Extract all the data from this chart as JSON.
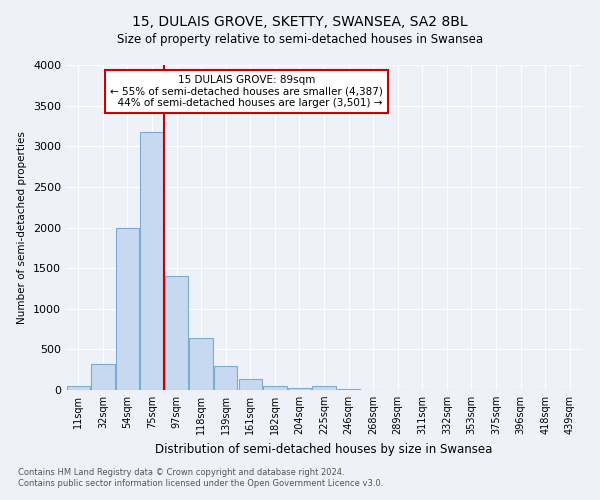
{
  "title": "15, DULAIS GROVE, SKETTY, SWANSEA, SA2 8BL",
  "subtitle": "Size of property relative to semi-detached houses in Swansea",
  "xlabel": "Distribution of semi-detached houses by size in Swansea",
  "ylabel": "Number of semi-detached properties",
  "footnote1": "Contains HM Land Registry data © Crown copyright and database right 2024.",
  "footnote2": "Contains public sector information licensed under the Open Government Licence v3.0.",
  "annotation_title": "15 DULAIS GROVE: 89sqm",
  "annotation_line1": "← 55% of semi-detached houses are smaller (4,387)",
  "annotation_line2": "  44% of semi-detached houses are larger (3,501) →",
  "categories": [
    "11sqm",
    "32sqm",
    "54sqm",
    "75sqm",
    "97sqm",
    "118sqm",
    "139sqm",
    "161sqm",
    "182sqm",
    "204sqm",
    "225sqm",
    "246sqm",
    "268sqm",
    "289sqm",
    "311sqm",
    "332sqm",
    "353sqm",
    "375sqm",
    "396sqm",
    "418sqm",
    "439sqm"
  ],
  "values": [
    50,
    320,
    2000,
    3170,
    1400,
    640,
    300,
    130,
    50,
    30,
    50,
    10,
    5,
    3,
    2,
    2,
    1,
    1,
    1,
    1,
    1
  ],
  "bar_color": "#c6d9f0",
  "bar_edgecolor": "#7badd4",
  "marker_bar_index": 4,
  "ylim": [
    0,
    4000
  ],
  "yticks": [
    0,
    500,
    1000,
    1500,
    2000,
    2500,
    3000,
    3500,
    4000
  ],
  "annotation_box_facecolor": "white",
  "annotation_box_edgecolor": "#cc0000",
  "marker_line_color": "#cc0000",
  "bg_color": "#eef2f8",
  "plot_bg_color": "#eef2f8"
}
